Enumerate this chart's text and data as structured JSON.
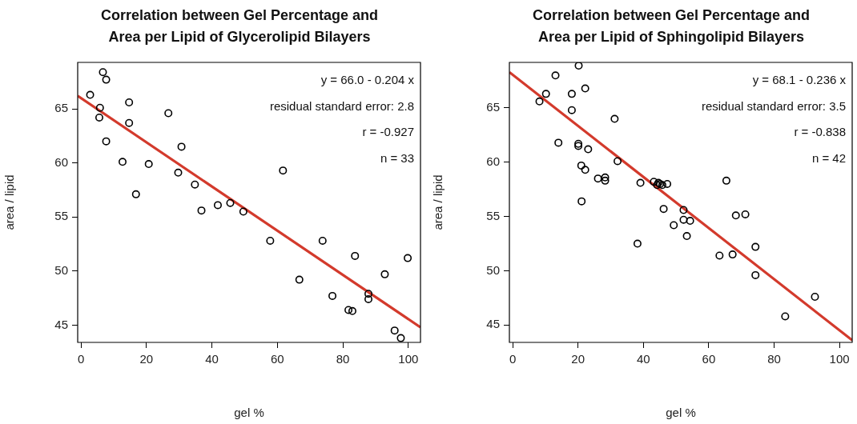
{
  "chart_data": [
    {
      "type": "scatter",
      "title": "Correlation between Gel Percentage and\nArea per Lipid of Glycerolipid Bilayers",
      "xlabel": "gel %",
      "ylabel": "area / lipid",
      "annotations": [
        "y = 66.0 - 0.204 x",
        "residual standard error: 2.8",
        "r = -0.927",
        "n = 33"
      ],
      "xlim": [
        -1,
        103.7
      ],
      "ylim": [
        43.4,
        69.3
      ],
      "xticks": [
        0,
        20,
        40,
        60,
        80,
        100
      ],
      "yticks": [
        45,
        50,
        55,
        60,
        65
      ],
      "grid": false,
      "legend": false,
      "series": [
        {
          "marker": "circle",
          "color": "#000000",
          "x": [
            2.8,
            6.7,
            7.7,
            5.8,
            5.6,
            7.7,
            14.7,
            14.7,
            12.7,
            16.8,
            20.7,
            26.7,
            30.7,
            29.7,
            34.8,
            36.8,
            41.8,
            45.6,
            49.6,
            61.7,
            57.8,
            66.7,
            73.8,
            76.8,
            83.7,
            81.7,
            82.9,
            87.8,
            87.8,
            92.8,
            99.8,
            95.8,
            97.7
          ],
          "values": [
            66.3,
            68.4,
            67.7,
            65.1,
            64.2,
            62.0,
            65.6,
            63.7,
            60.1,
            57.1,
            59.9,
            64.6,
            61.5,
            59.1,
            58.0,
            55.6,
            56.1,
            56.3,
            55.5,
            59.3,
            52.8,
            49.2,
            52.8,
            47.7,
            51.4,
            46.4,
            46.3,
            47.9,
            47.4,
            49.7,
            51.2,
            44.5,
            43.8
          ]
        },
        {
          "type": "line",
          "marker": "none",
          "color": "#d33a2c",
          "x": [
            -1,
            103.7
          ],
          "values": [
            66.2,
            44.8
          ]
        }
      ]
    },
    {
      "type": "scatter",
      "title": "Correlation between Gel Percentage and\nArea per Lipid of Sphingolipid Bilayers",
      "xlabel": "gel %",
      "ylabel": "area / lipid",
      "annotations": [
        "y = 68.1 - 0.236 x",
        "residual standard error: 3.5",
        "r = -0.838",
        "n = 42"
      ],
      "xlim": [
        -1,
        103.9
      ],
      "ylim": [
        43.4,
        69.2
      ],
      "xticks": [
        0,
        20,
        40,
        60,
        80,
        100
      ],
      "yticks": [
        45,
        50,
        55,
        60,
        65
      ],
      "grid": false,
      "legend": false,
      "series": [
        {
          "marker": "circle",
          "color": "#000000",
          "x": [
            20.2,
            13.1,
            10.2,
            8.2,
            18.1,
            22.2,
            18.1,
            31.2,
            14.0,
            20.1,
            20.1,
            23.1,
            32.1,
            21.0,
            22.2,
            26.1,
            28.3,
            28.3,
            39.1,
            43.2,
            44.2,
            45.8,
            47.3,
            21.1,
            65.4,
            46.2,
            52.3,
            52.3,
            54.3,
            49.3,
            53.3,
            38.2,
            68.3,
            71.2,
            63.3,
            67.3,
            74.3,
            74.3,
            92.5,
            83.4,
            45.1,
            44.6
          ],
          "values": [
            68.9,
            68.0,
            66.3,
            65.6,
            66.3,
            66.8,
            64.8,
            64.0,
            61.8,
            61.7,
            61.5,
            61.2,
            60.1,
            59.7,
            59.3,
            58.5,
            58.6,
            58.3,
            58.1,
            58.2,
            57.9,
            57.9,
            58.0,
            56.4,
            58.3,
            55.7,
            55.6,
            54.7,
            54.6,
            54.2,
            53.2,
            52.5,
            55.1,
            55.2,
            51.4,
            51.5,
            52.2,
            49.6,
            47.6,
            45.8,
            58.0,
            58.1
          ]
        },
        {
          "type": "line",
          "marker": "none",
          "color": "#d33a2c",
          "x": [
            -1,
            103.9
          ],
          "values": [
            68.3,
            43.6
          ]
        }
      ]
    }
  ]
}
